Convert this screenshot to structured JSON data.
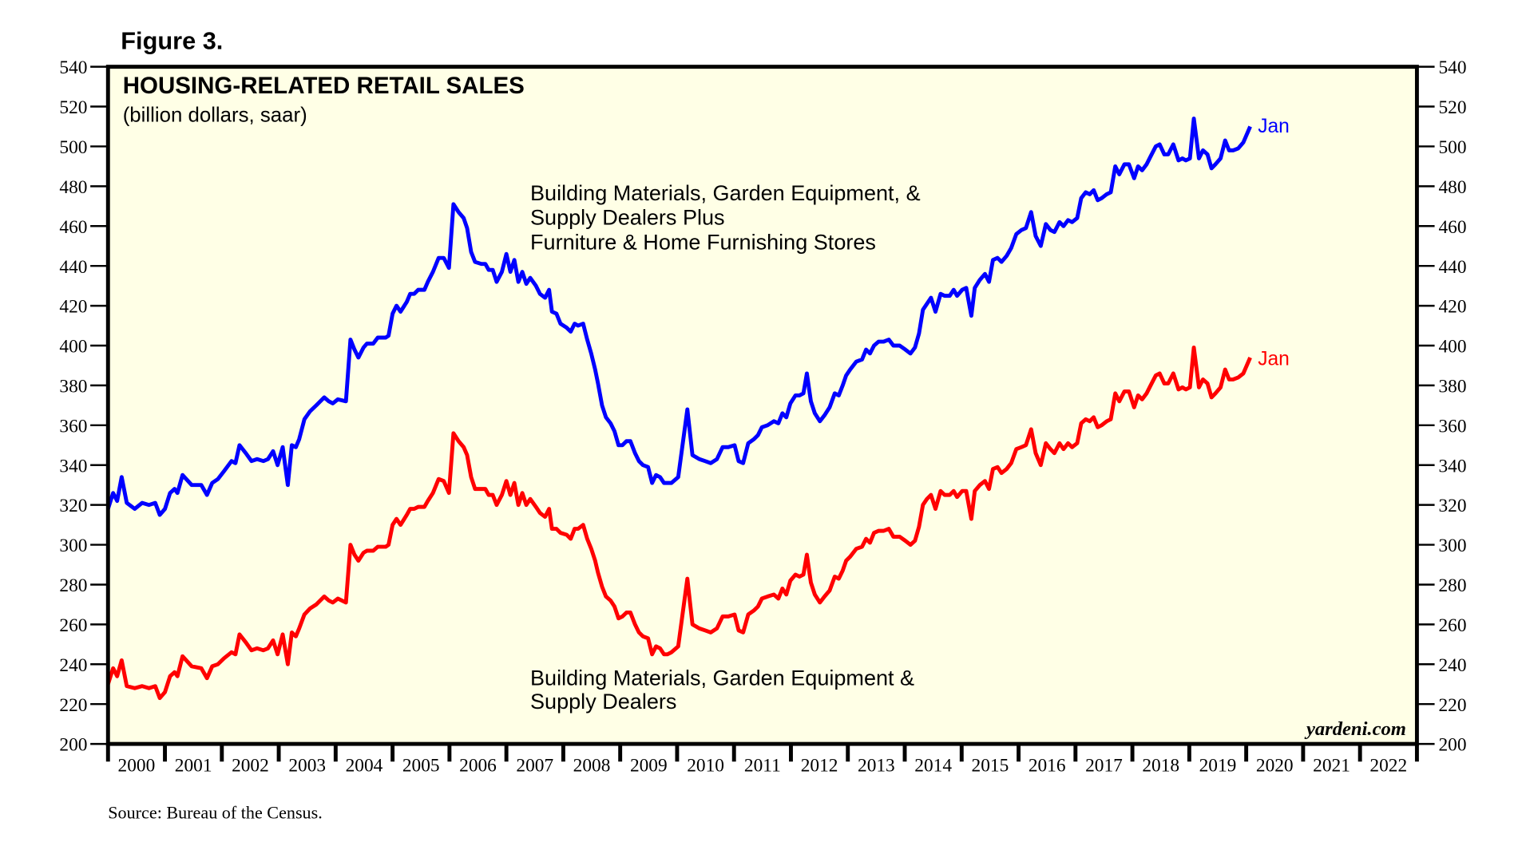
{
  "figure_label": "Figure 3.",
  "source": "Source: Bureau of the Census.",
  "watermark": "yardeni.com",
  "colors": {
    "blue": "#0000FF",
    "red": "#FF0000",
    "plot_bg": "#FFFFE6"
  },
  "chart_data": {
    "type": "line",
    "title": "HOUSING-RELATED RETAIL SALES",
    "subtitle": "(billion dollars, saar)",
    "xlabel": "",
    "ylabel": "",
    "ylim": [
      200,
      540
    ],
    "xlim": [
      2000,
      2023
    ],
    "grid": false,
    "yticks": [
      200,
      220,
      240,
      260,
      280,
      300,
      320,
      340,
      360,
      380,
      400,
      420,
      440,
      460,
      480,
      500,
      520,
      540
    ],
    "xtick_labels": [
      "2000",
      "2001",
      "2002",
      "2003",
      "2004",
      "2005",
      "2006",
      "2007",
      "2008",
      "2009",
      "2010",
      "2011",
      "2012",
      "2013",
      "2014",
      "2015",
      "2016",
      "2017",
      "2018",
      "2019",
      "2020",
      "2021",
      "2022"
    ],
    "x": [
      2000.0,
      2000.09,
      2000.16,
      2000.24,
      2000.33,
      2000.47,
      2000.6,
      2000.72,
      2000.83,
      2000.91,
      2001.0,
      2001.09,
      2001.17,
      2001.22,
      2001.31,
      2001.47,
      2001.64,
      2001.74,
      2001.83,
      2001.93,
      2002.04,
      2002.17,
      2002.24,
      2002.31,
      2002.42,
      2002.52,
      2002.62,
      2002.73,
      2002.81,
      2002.9,
      2002.98,
      2003.07,
      2003.16,
      2003.23,
      2003.3,
      2003.36,
      2003.45,
      2003.55,
      2003.66,
      2003.8,
      2003.88,
      2003.95,
      2004.04,
      2004.18,
      2004.26,
      2004.33,
      2004.4,
      2004.49,
      2004.55,
      2004.66,
      2004.74,
      2004.88,
      2004.93,
      2005.0,
      2005.07,
      2005.14,
      2005.25,
      2005.31,
      2005.38,
      2005.45,
      2005.56,
      2005.62,
      2005.71,
      2005.81,
      2005.9,
      2005.99,
      2006.07,
      2006.16,
      2006.25,
      2006.31,
      2006.38,
      2006.45,
      2006.56,
      2006.63,
      2006.69,
      2006.76,
      2006.83,
      2006.92,
      2007.0,
      2007.07,
      2007.14,
      2007.21,
      2007.28,
      2007.35,
      2007.42,
      2007.52,
      2007.59,
      2007.68,
      2007.75,
      2007.8,
      2007.88,
      2007.95,
      2008.06,
      2008.13,
      2008.2,
      2008.26,
      2008.35,
      2008.42,
      2008.49,
      2008.56,
      2008.61,
      2008.68,
      2008.75,
      2008.83,
      2008.9,
      2008.97,
      2009.04,
      2009.11,
      2009.18,
      2009.26,
      2009.33,
      2009.4,
      2009.49,
      2009.56,
      2009.63,
      2009.7,
      2009.77,
      2009.83,
      2009.9,
      2010.02,
      2010.18,
      2010.27,
      2010.39,
      2010.49,
      2010.59,
      2010.7,
      2010.8,
      2010.9,
      2011.01,
      2011.08,
      2011.16,
      2011.25,
      2011.35,
      2011.42,
      2011.49,
      2011.59,
      2011.7,
      2011.78,
      2011.85,
      2011.92,
      2011.99,
      2012.08,
      2012.15,
      2012.22,
      2012.28,
      2012.35,
      2012.42,
      2012.51,
      2012.59,
      2012.68,
      2012.77,
      2012.84,
      2012.91,
      2012.97,
      2013.04,
      2013.15,
      2013.25,
      2013.32,
      2013.39,
      2013.46,
      2013.54,
      2013.63,
      2013.72,
      2013.8,
      2013.91,
      2014.01,
      2014.1,
      2014.18,
      2014.25,
      2014.32,
      2014.39,
      2014.46,
      2014.54,
      2014.63,
      2014.7,
      2014.79,
      2014.86,
      2014.92,
      2015.01,
      2015.08,
      2015.17,
      2015.23,
      2015.32,
      2015.41,
      2015.48,
      2015.55,
      2015.63,
      2015.7,
      2015.79,
      2015.87,
      2015.96,
      2016.05,
      2016.13,
      2016.22,
      2016.3,
      2016.39,
      2016.48,
      2016.56,
      2016.63,
      2016.72,
      2016.79,
      2016.87,
      2016.94,
      2017.03,
      2017.1,
      2017.18,
      2017.25,
      2017.32,
      2017.39,
      2017.46,
      2017.55,
      2017.62,
      2017.7,
      2017.77,
      2017.86,
      2017.94,
      2018.03,
      2018.1,
      2018.17,
      2018.25,
      2018.32,
      2018.41,
      2018.48,
      2018.56,
      2018.63,
      2018.72,
      2018.81,
      2018.88,
      2018.94,
      2019.01,
      2019.08,
      2019.17,
      2019.24,
      2019.32,
      2019.39,
      2019.46,
      2019.55,
      2019.63,
      2019.7,
      2019.77,
      2019.86,
      2019.95,
      2020.07
    ],
    "series": [
      {
        "name": "Building Materials, Garden Equipment, & Supply Dealers Plus Furniture & Home Furnishing Stores",
        "label_lines": [
          "Building Materials, Garden Equipment, &",
          "Supply Dealers Plus",
          "Furniture & Home Furnishing Stores"
        ],
        "end_label": "Jan",
        "color": "#0000FF",
        "values": [
          318,
          326,
          322,
          334,
          321,
          318,
          321,
          320,
          321,
          315,
          318,
          326,
          328,
          326,
          335,
          330,
          330,
          325,
          331,
          333,
          337,
          342,
          341,
          350,
          346,
          342,
          343,
          342,
          343,
          347,
          340,
          349,
          330,
          350,
          349,
          353,
          363,
          367,
          370,
          374,
          372,
          371,
          373,
          372,
          403,
          398,
          394,
          399,
          401,
          401,
          404,
          404,
          405,
          416,
          420,
          417,
          422,
          426,
          426,
          428,
          428,
          432,
          437,
          444,
          444,
          439,
          471,
          467,
          464,
          459,
          447,
          442,
          441,
          441,
          438,
          438,
          432,
          437,
          446,
          437,
          443,
          432,
          437,
          431,
          434,
          430,
          426,
          424,
          428,
          417,
          416,
          411,
          409,
          407,
          411,
          410,
          411,
          403,
          396,
          388,
          381,
          370,
          364,
          361,
          357,
          350,
          350,
          352,
          352,
          346,
          342,
          340,
          339,
          331,
          335,
          334,
          331,
          331,
          331,
          334,
          368,
          345,
          343,
          342,
          341,
          343,
          349,
          349,
          350,
          342,
          341,
          351,
          353,
          355,
          359,
          360,
          362,
          361,
          366,
          364,
          371,
          375,
          375,
          376,
          386,
          372,
          366,
          362,
          365,
          369,
          376,
          375,
          380,
          385,
          388,
          392,
          393,
          398,
          396,
          400,
          402,
          402,
          403,
          400,
          400,
          398,
          396,
          399,
          406,
          418,
          421,
          424,
          417,
          426,
          425,
          425,
          428,
          425,
          428,
          429,
          415,
          429,
          433,
          436,
          432,
          443,
          444,
          442,
          445,
          449,
          456,
          458,
          459,
          467,
          455,
          450,
          461,
          458,
          457,
          462,
          460,
          463,
          462,
          464,
          474,
          477,
          476,
          478,
          473,
          474,
          476,
          477,
          490,
          486,
          491,
          491,
          484,
          490,
          488,
          491,
          495,
          500,
          501,
          496,
          496,
          501,
          493,
          494,
          493,
          494,
          514,
          494,
          498,
          496,
          489,
          491,
          494,
          503,
          498,
          498,
          499,
          502,
          510
        ]
      },
      {
        "name": "Building Materials, Garden Equipment & Supply Dealers",
        "label_lines": [
          "Building Materials, Garden Equipment &",
          "Supply Dealers"
        ],
        "end_label": "Jan",
        "color": "#FF0000",
        "values": [
          230,
          238,
          234,
          242,
          229,
          228,
          229,
          228,
          229,
          223,
          226,
          234,
          236,
          234,
          244,
          239,
          238,
          233,
          239,
          240,
          243,
          246,
          245,
          255,
          251,
          247,
          248,
          247,
          248,
          252,
          245,
          255,
          240,
          256,
          254,
          258,
          265,
          268,
          270,
          274,
          272,
          271,
          273,
          271,
          300,
          295,
          292,
          296,
          297,
          297,
          299,
          299,
          300,
          310,
          313,
          310,
          315,
          318,
          318,
          319,
          319,
          322,
          326,
          333,
          332,
          326,
          356,
          352,
          349,
          345,
          334,
          328,
          328,
          328,
          325,
          325,
          320,
          325,
          332,
          325,
          331,
          320,
          326,
          320,
          323,
          319,
          316,
          314,
          318,
          308,
          308,
          306,
          305,
          303,
          308,
          308,
          310,
          303,
          298,
          292,
          286,
          279,
          274,
          272,
          269,
          263,
          264,
          266,
          266,
          260,
          256,
          254,
          253,
          245,
          249,
          248,
          245,
          245,
          246,
          249,
          283,
          260,
          258,
          257,
          256,
          258,
          264,
          264,
          265,
          257,
          256,
          265,
          267,
          269,
          273,
          274,
          275,
          273,
          278,
          275,
          282,
          285,
          284,
          285,
          295,
          281,
          275,
          271,
          274,
          277,
          284,
          283,
          287,
          292,
          294,
          298,
          299,
          303,
          301,
          306,
          307,
          307,
          308,
          304,
          304,
          302,
          300,
          302,
          309,
          320,
          323,
          325,
          318,
          327,
          325,
          325,
          327,
          324,
          327,
          327,
          313,
          327,
          330,
          332,
          328,
          338,
          339,
          336,
          338,
          341,
          348,
          349,
          350,
          358,
          346,
          340,
          351,
          348,
          346,
          351,
          348,
          351,
          349,
          351,
          361,
          363,
          362,
          364,
          359,
          360,
          362,
          363,
          376,
          372,
          377,
          377,
          369,
          375,
          373,
          376,
          380,
          385,
          386,
          381,
          381,
          386,
          378,
          379,
          378,
          379,
          399,
          379,
          383,
          381,
          374,
          376,
          379,
          388,
          383,
          383,
          384,
          386,
          394
        ]
      }
    ]
  }
}
